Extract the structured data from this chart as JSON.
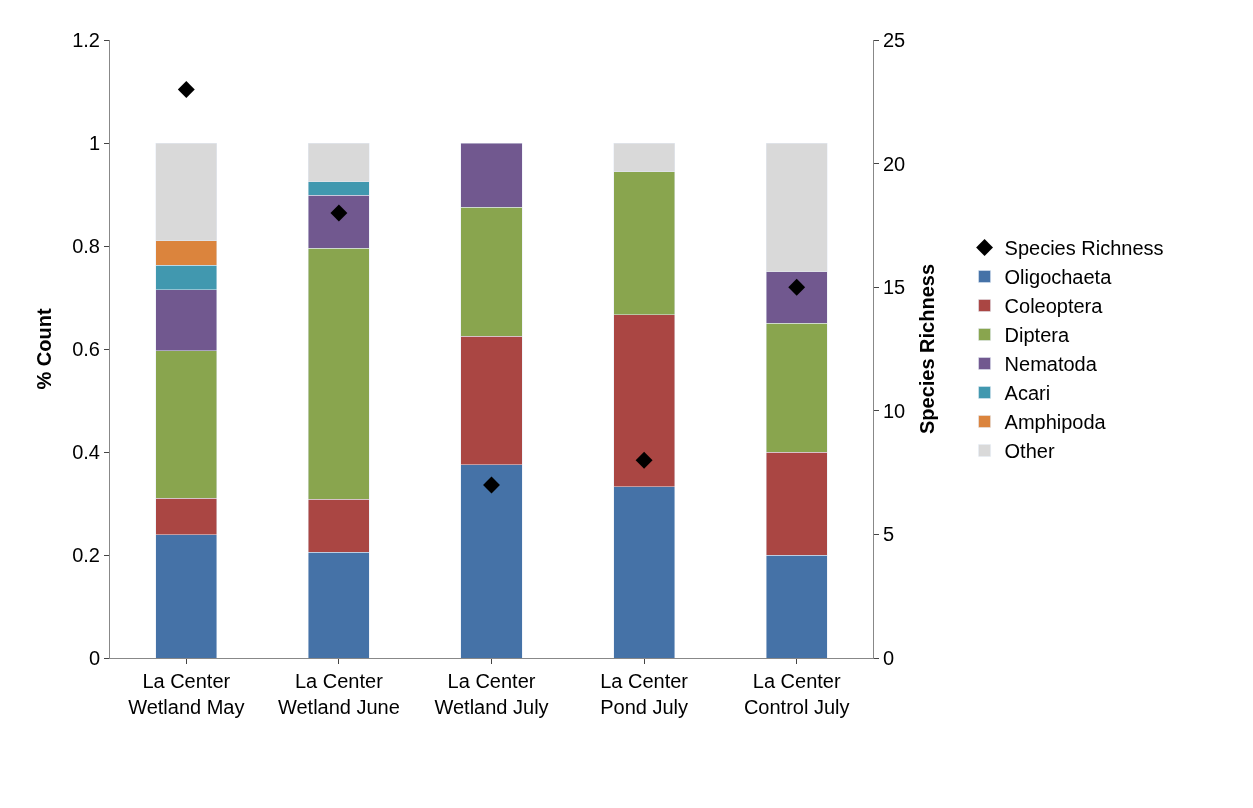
{
  "chart_data": {
    "type": "bar",
    "stacked": true,
    "ylabel": "% Count",
    "y2label": "Species Richness",
    "categories": [
      "La Center Wetland May",
      "La Center Wetland June",
      "La Center Wetland July",
      "La Center Pond July",
      "La Center Control July"
    ],
    "series": [
      {
        "name": "Oligochaeta",
        "color": "#4572a7",
        "values": [
          0.239,
          0.205,
          0.375,
          0.333,
          0.2
        ]
      },
      {
        "name": "Coleoptera",
        "color": "#aa4643",
        "values": [
          0.071,
          0.103,
          0.25,
          0.334,
          0.2
        ]
      },
      {
        "name": "Diptera",
        "color": "#89a54e",
        "values": [
          0.287,
          0.488,
          0.25,
          0.277,
          0.25
        ]
      },
      {
        "name": "Nematoda",
        "color": "#71588f",
        "values": [
          0.118,
          0.103,
          0.125,
          null,
          0.1
        ]
      },
      {
        "name": "Acari",
        "color": "#4198af",
        "values": [
          0.048,
          0.026,
          null,
          null,
          null
        ]
      },
      {
        "name": "Amphipoda",
        "color": "#db843d",
        "values": [
          0.047,
          null,
          null,
          null,
          null
        ]
      },
      {
        "name": "Other",
        "color": "#d9d9d9",
        "values": [
          0.19,
          0.075,
          null,
          0.056,
          0.25
        ]
      },
      {
        "name": "Species Richness",
        "type": "scatter",
        "axis": "y2",
        "color": "#000000",
        "marker": "diamond",
        "values": [
          23,
          18,
          7,
          8,
          15
        ]
      }
    ],
    "ylim": [
      0,
      1.2
    ],
    "yticks": [
      0,
      {
        "value": 0.2,
        "label": "0.2"
      },
      {
        "value": 0.4,
        "label": "0.4"
      },
      {
        "value": 0.6,
        "label": "0.6"
      },
      {
        "value": 0.8,
        "label": "0.8"
      },
      1,
      {
        "value": 1.2,
        "label": "1.2"
      }
    ],
    "y2lim": [
      0,
      25
    ],
    "y2ticks": [
      0,
      5,
      10,
      15,
      20,
      25
    ],
    "grid": false,
    "legend": "right"
  }
}
